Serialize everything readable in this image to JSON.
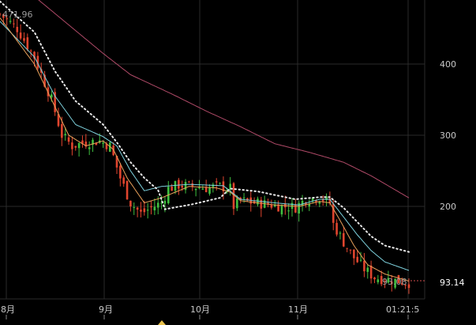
{
  "chart_data": {
    "type": "candlestick",
    "title": "",
    "xlabel": "",
    "ylabel": "",
    "ylim": [
      74,
      488
    ],
    "grid": true,
    "x_ticks": [
      "8月",
      "9月",
      "10月",
      "11月",
      "01:21:5"
    ],
    "y_ticks": [
      200,
      300,
      400
    ],
    "high_readout": "471.96",
    "low_readout": "93.08",
    "last_price": "93.14",
    "colors": {
      "up": "#3fbf3f",
      "down": "#e0452e",
      "ma_short": "#e8a05a",
      "ma_mid": "#7fd3df",
      "ma_dotted": "#e8e8e8",
      "ma_long": "#b04a68",
      "grid": "#2a2a2a",
      "text": "#c8c8c8",
      "last_price_line": "#d14b4b"
    },
    "candles": {
      "count": 120,
      "x_start": 0,
      "x_end": 518,
      "close_anchors": [
        [
          0,
          470
        ],
        [
          5,
          450
        ],
        [
          10,
          410
        ],
        [
          15,
          350
        ],
        [
          18,
          300
        ],
        [
          21,
          285
        ],
        [
          25,
          290
        ],
        [
          29,
          292
        ],
        [
          32,
          285
        ],
        [
          35,
          240
        ],
        [
          38,
          205
        ],
        [
          41,
          190
        ],
        [
          44,
          198
        ],
        [
          47,
          205
        ],
        [
          49,
          225
        ],
        [
          52,
          230
        ],
        [
          56,
          228
        ],
        [
          60,
          226
        ],
        [
          64,
          228
        ],
        [
          67,
          225
        ],
        [
          68,
          200
        ],
        [
          70,
          208
        ],
        [
          74,
          205
        ],
        [
          78,
          203
        ],
        [
          82,
          200
        ],
        [
          86,
          199
        ],
        [
          89,
          210
        ],
        [
          93,
          213
        ],
        [
          96,
          205
        ],
        [
          97,
          175
        ],
        [
          100,
          150
        ],
        [
          103,
          128
        ],
        [
          106,
          112
        ],
        [
          109,
          100
        ],
        [
          112,
          98
        ],
        [
          115,
          96
        ],
        [
          119,
          93
        ]
      ]
    },
    "ma_short": [
      [
        0,
        465
      ],
      [
        10,
        400
      ],
      [
        16,
        340
      ],
      [
        20,
        300
      ],
      [
        25,
        285
      ],
      [
        30,
        292
      ],
      [
        33,
        280
      ],
      [
        37,
        240
      ],
      [
        42,
        205
      ],
      [
        47,
        212
      ],
      [
        55,
        228
      ],
      [
        63,
        226
      ],
      [
        67,
        220
      ],
      [
        70,
        208
      ],
      [
        80,
        202
      ],
      [
        87,
        200
      ],
      [
        93,
        207
      ],
      [
        96,
        205
      ],
      [
        99,
        180
      ],
      [
        103,
        145
      ],
      [
        107,
        118
      ],
      [
        112,
        105
      ],
      [
        119,
        95
      ]
    ],
    "ma_mid": [
      [
        0,
        460
      ],
      [
        10,
        410
      ],
      [
        16,
        355
      ],
      [
        22,
        315
      ],
      [
        30,
        298
      ],
      [
        34,
        285
      ],
      [
        38,
        250
      ],
      [
        42,
        222
      ],
      [
        47,
        228
      ],
      [
        55,
        231
      ],
      [
        65,
        229
      ],
      [
        70,
        210
      ],
      [
        80,
        205
      ],
      [
        87,
        202
      ],
      [
        93,
        210
      ],
      [
        96,
        210
      ],
      [
        100,
        185
      ],
      [
        104,
        160
      ],
      [
        108,
        138
      ],
      [
        112,
        122
      ],
      [
        119,
        110
      ]
    ],
    "ma_dotted": [
      [
        0,
        488
      ],
      [
        10,
        445
      ],
      [
        16,
        390
      ],
      [
        22,
        348
      ],
      [
        30,
        315
      ],
      [
        34,
        290
      ],
      [
        38,
        262
      ],
      [
        42,
        240
      ],
      [
        46,
        223
      ],
      [
        48,
        196
      ],
      [
        56,
        203
      ],
      [
        64,
        212
      ],
      [
        67,
        225
      ],
      [
        75,
        221
      ],
      [
        86,
        210
      ],
      [
        93,
        213
      ],
      [
        96,
        213
      ],
      [
        100,
        198
      ],
      [
        104,
        178
      ],
      [
        108,
        158
      ],
      [
        112,
        145
      ],
      [
        119,
        136
      ]
    ],
    "ma_long": [
      [
        10,
        495
      ],
      [
        20,
        455
      ],
      [
        30,
        415
      ],
      [
        38,
        385
      ],
      [
        50,
        358
      ],
      [
        60,
        334
      ],
      [
        70,
        312
      ],
      [
        80,
        288
      ],
      [
        90,
        276
      ],
      [
        100,
        262
      ],
      [
        108,
        243
      ],
      [
        119,
        212
      ]
    ]
  }
}
